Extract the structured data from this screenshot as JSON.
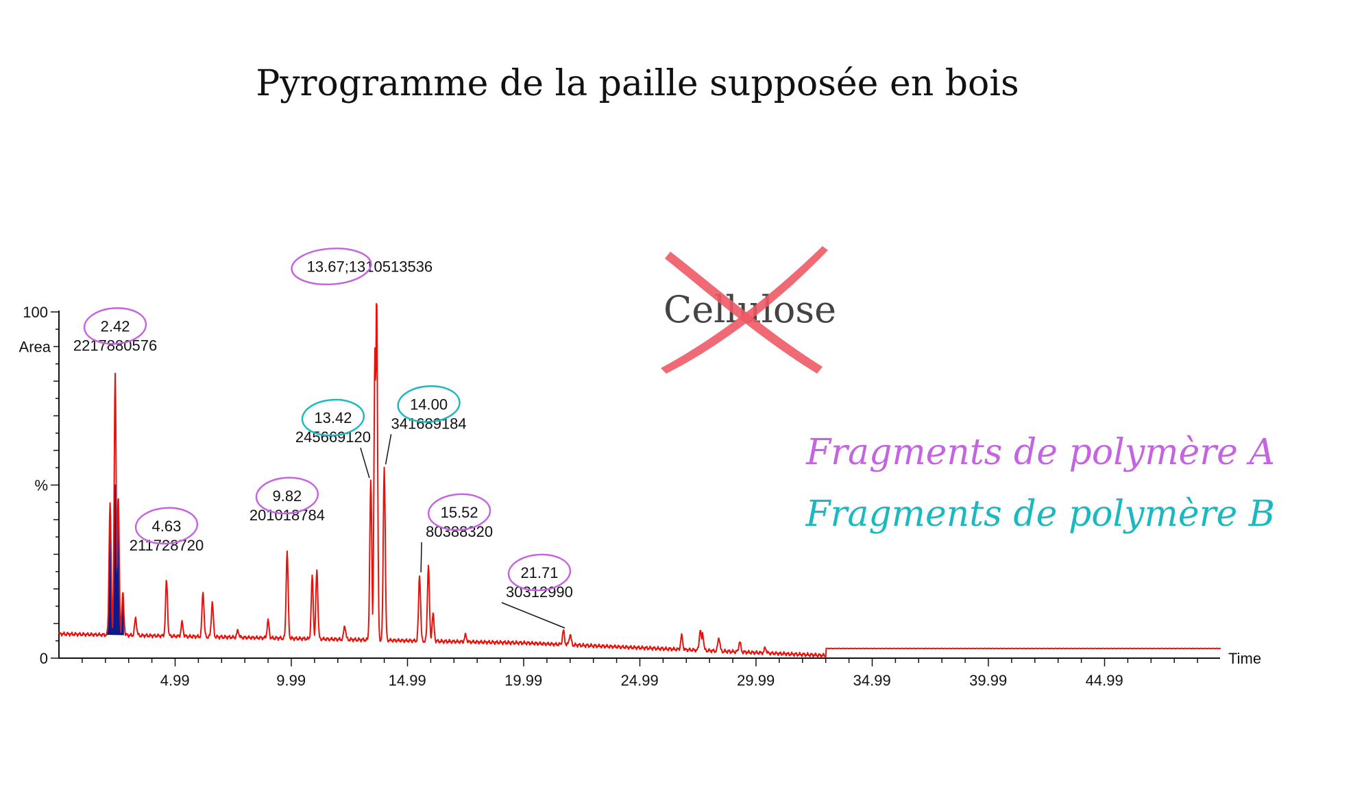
{
  "title": "Pyrogramme de la paille supposée en bois",
  "annotation": {
    "crossed_text": "Cellulose",
    "cross_color": "#ee5a66"
  },
  "legend": {
    "polymer_a": {
      "label": "Fragments de polymère A",
      "color": "#c464e0"
    },
    "polymer_b": {
      "label": "Fragments de polymère B",
      "color": "#1ab8c0"
    }
  },
  "chart_data": {
    "type": "line",
    "xlabel": "Time",
    "ylabel_top": "Area",
    "ylabel_mid": "%",
    "ylabel_color": "#e8120c",
    "trace_color": "#e8120c",
    "under_trace_color": "#0a1a8c",
    "xlim": [
      0,
      50
    ],
    "ylim": [
      0,
      100
    ],
    "y_ticks": [
      {
        "value": 0,
        "label": "0"
      },
      {
        "value": 100,
        "label": "100"
      }
    ],
    "x_ticks": [
      {
        "value": 4.99,
        "label": "4.99"
      },
      {
        "value": 9.99,
        "label": "9.99"
      },
      {
        "value": 14.99,
        "label": "14.99"
      },
      {
        "value": 19.99,
        "label": "19.99"
      },
      {
        "value": 24.99,
        "label": "24.99"
      },
      {
        "value": 29.99,
        "label": "29.99"
      },
      {
        "value": 34.99,
        "label": "34.99"
      },
      {
        "value": 39.99,
        "label": "39.99"
      },
      {
        "value": 44.99,
        "label": "44.99"
      }
    ],
    "peaks": [
      {
        "time": 2.42,
        "height": 75,
        "time_label": "2.42",
        "area_label": "2217880576",
        "group": "A"
      },
      {
        "time": 4.63,
        "height": 16,
        "time_label": "4.63",
        "area_label": "211728720",
        "group": "A"
      },
      {
        "time": 9.82,
        "height": 25,
        "time_label": "9.82",
        "area_label": "201018784",
        "group": "A"
      },
      {
        "time": 13.42,
        "height": 46,
        "time_label": "13.42",
        "area_label": "245669120",
        "group": "B"
      },
      {
        "time": 13.67,
        "height": 100,
        "time_label": "13.67;1310513536",
        "area_label": "",
        "group": "A"
      },
      {
        "time": 14.0,
        "height": 50,
        "time_label": "14.00",
        "area_label": "341689184",
        "group": "B"
      },
      {
        "time": 15.52,
        "height": 19,
        "time_label": "15.52",
        "area_label": "80388320",
        "group": "A"
      },
      {
        "time": 21.71,
        "height": 4,
        "time_label": "21.71",
        "area_label": "30312990",
        "group": "A"
      }
    ],
    "minor_peaks": [
      {
        "time": 2.2,
        "height": 38
      },
      {
        "time": 2.55,
        "height": 40
      },
      {
        "time": 2.75,
        "height": 12
      },
      {
        "time": 3.3,
        "height": 5
      },
      {
        "time": 5.3,
        "height": 4
      },
      {
        "time": 6.2,
        "height": 13
      },
      {
        "time": 6.6,
        "height": 10
      },
      {
        "time": 7.7,
        "height": 2
      },
      {
        "time": 9.0,
        "height": 5
      },
      {
        "time": 10.9,
        "height": 18
      },
      {
        "time": 11.1,
        "height": 20
      },
      {
        "time": 12.3,
        "height": 4
      },
      {
        "time": 13.6,
        "height": 84
      },
      {
        "time": 15.9,
        "height": 22
      },
      {
        "time": 16.1,
        "height": 8
      },
      {
        "time": 17.5,
        "height": 2
      },
      {
        "time": 22.0,
        "height": 3
      },
      {
        "time": 26.8,
        "height": 4
      },
      {
        "time": 27.6,
        "height": 6
      },
      {
        "time": 27.7,
        "height": 5
      },
      {
        "time": 28.4,
        "height": 4
      },
      {
        "time": 29.3,
        "height": 3
      },
      {
        "time": 30.4,
        "height": 1.5
      }
    ]
  }
}
